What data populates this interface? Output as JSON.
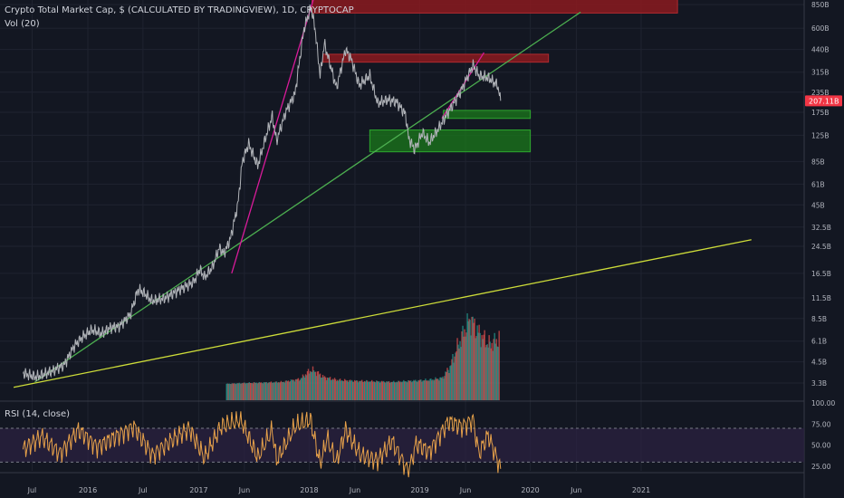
{
  "header": {
    "title": "Crypto Total Market Cap, $ (CALCULATED BY TRADINGVIEW), 1D, CRYPTOCAP",
    "volume_label": "Vol (20)",
    "rsi_label": "RSI (14, close)"
  },
  "colors": {
    "background": "#131722",
    "grid": "#1f2330",
    "price_line": "#b0b3b8",
    "green_trendline": "#4caf50",
    "yellow_trendline": "#cddc39",
    "magenta_trendline": "#d81b9a",
    "resistance_zone": "#8b1a1e",
    "support_zone": "#1b7a1b",
    "rsi_line": "#e8a24a",
    "rsi_band": "#2b2140",
    "current_price_tag": "#f23645"
  },
  "chart_data": {
    "type": "line",
    "title": "Crypto Total Market Cap, $ (CALCULATED BY TRADINGVIEW), 1D, CRYPTOCAP",
    "y_scale": "log",
    "y_ticks": [
      "850B",
      "600B",
      "440B",
      "315B",
      "235B",
      "175B",
      "125B",
      "85B",
      "61B",
      "45B",
      "32.5B",
      "24.5B",
      "16.5B",
      "11.5B",
      "8.5B",
      "6.1B",
      "4.5B",
      "3.3B"
    ],
    "x_ticks": [
      "Jul",
      "2016",
      "Jul",
      "2017",
      "Jun",
      "2018",
      "Jun",
      "2019",
      "Jun",
      "2020",
      "Jun",
      "2021"
    ],
    "current_price_label": "207.11B",
    "series": [
      {
        "kind": "price",
        "points": [
          [
            "2015-06-01",
            3.8
          ],
          [
            "2015-07-15",
            3.6
          ],
          [
            "2015-09-01",
            3.9
          ],
          [
            "2015-10-15",
            4.3
          ],
          [
            "2015-11-15",
            5.6
          ],
          [
            "2015-12-15",
            6.5
          ],
          [
            "2016-01-15",
            7.2
          ],
          [
            "2016-02-15",
            6.8
          ],
          [
            "2016-03-15",
            7.4
          ],
          [
            "2016-04-15",
            7.6
          ],
          [
            "2016-05-20",
            9.0
          ],
          [
            "2016-06-15",
            13.0
          ],
          [
            "2016-07-01",
            12.5
          ],
          [
            "2016-08-01",
            11.0
          ],
          [
            "2016-09-15",
            11.5
          ],
          [
            "2016-10-15",
            12.5
          ],
          [
            "2016-11-15",
            13.5
          ],
          [
            "2016-12-15",
            14.5
          ],
          [
            "2017-01-05",
            17.5
          ],
          [
            "2017-01-20",
            15.5
          ],
          [
            "2017-02-15",
            18.0
          ],
          [
            "2017-03-10",
            24.0
          ],
          [
            "2017-03-25",
            22.0
          ],
          [
            "2017-04-15",
            27.0
          ],
          [
            "2017-05-10",
            45.0
          ],
          [
            "2017-05-25",
            85.0
          ],
          [
            "2017-06-15",
            110.0
          ],
          [
            "2017-07-15",
            80.0
          ],
          [
            "2017-08-15",
            130.0
          ],
          [
            "2017-09-01",
            165.0
          ],
          [
            "2017-09-15",
            115.0
          ],
          [
            "2017-10-15",
            175.0
          ],
          [
            "2017-11-15",
            230.0
          ],
          [
            "2017-12-15",
            600.0
          ],
          [
            "2018-01-07",
            820.0
          ],
          [
            "2018-01-20",
            600.0
          ],
          [
            "2018-02-06",
            300.0
          ],
          [
            "2018-02-20",
            480.0
          ],
          [
            "2018-03-15",
            330.0
          ],
          [
            "2018-04-01",
            250.0
          ],
          [
            "2018-05-01",
            440.0
          ],
          [
            "2018-05-20",
            380.0
          ],
          [
            "2018-06-15",
            260.0
          ],
          [
            "2018-07-20",
            300.0
          ],
          [
            "2018-08-15",
            200.0
          ],
          [
            "2018-09-15",
            210.0
          ],
          [
            "2018-10-15",
            205.0
          ],
          [
            "2018-11-15",
            170.0
          ],
          [
            "2018-11-25",
            120.0
          ],
          [
            "2018-12-15",
            101.0
          ],
          [
            "2019-01-10",
            130.0
          ],
          [
            "2019-02-01",
            112.0
          ],
          [
            "2019-03-01",
            135.0
          ],
          [
            "2019-04-05",
            175.0
          ],
          [
            "2019-05-15",
            235.0
          ],
          [
            "2019-06-26",
            350.0
          ],
          [
            "2019-07-15",
            300.0
          ],
          [
            "2019-08-15",
            290.0
          ],
          [
            "2019-09-15",
            260.0
          ],
          [
            "2019-09-25",
            207.11
          ]
        ]
      },
      {
        "kind": "volume",
        "points": [
          [
            "2017-04-01",
            3.26
          ],
          [
            "2017-06-01",
            3.3
          ],
          [
            "2017-08-01",
            3.32
          ],
          [
            "2017-10-01",
            3.35
          ],
          [
            "2017-12-01",
            3.5
          ],
          [
            "2018-01-05",
            4.0
          ],
          [
            "2018-01-20",
            3.9
          ],
          [
            "2018-02-15",
            3.6
          ],
          [
            "2018-04-01",
            3.45
          ],
          [
            "2018-06-01",
            3.4
          ],
          [
            "2018-08-01",
            3.38
          ],
          [
            "2018-10-01",
            3.35
          ],
          [
            "2018-12-01",
            3.4
          ],
          [
            "2019-02-01",
            3.45
          ],
          [
            "2019-03-15",
            3.55
          ],
          [
            "2019-04-10",
            4.2
          ],
          [
            "2019-05-15",
            6.3
          ],
          [
            "2019-06-15",
            8.5
          ],
          [
            "2019-07-10",
            7.0
          ],
          [
            "2019-08-15",
            5.8
          ],
          [
            "2019-09-20",
            6.3
          ]
        ]
      },
      {
        "kind": "rsi",
        "y_ticks": [
          "100.00",
          "75.00",
          "50.00",
          "25.00"
        ],
        "points": [
          [
            "2015-06-01",
            45
          ],
          [
            "2015-08-01",
            60
          ],
          [
            "2015-10-01",
            40
          ],
          [
            "2015-12-01",
            68
          ],
          [
            "2016-02-01",
            48
          ],
          [
            "2016-04-01",
            60
          ],
          [
            "2016-06-01",
            72
          ],
          [
            "2016-08-01",
            38
          ],
          [
            "2016-10-01",
            55
          ],
          [
            "2016-12-01",
            70
          ],
          [
            "2017-01-20",
            35
          ],
          [
            "2017-03-15",
            72
          ],
          [
            "2017-05-20",
            80
          ],
          [
            "2017-07-15",
            35
          ],
          [
            "2017-09-01",
            68
          ],
          [
            "2017-09-15",
            32
          ],
          [
            "2017-11-15",
            72
          ],
          [
            "2018-01-05",
            80
          ],
          [
            "2018-02-06",
            28
          ],
          [
            "2018-03-01",
            58
          ],
          [
            "2018-04-01",
            30
          ],
          [
            "2018-05-01",
            68
          ],
          [
            "2018-06-20",
            38
          ],
          [
            "2018-08-15",
            32
          ],
          [
            "2018-10-01",
            55
          ],
          [
            "2018-11-25",
            18
          ],
          [
            "2018-12-20",
            52
          ],
          [
            "2019-02-01",
            42
          ],
          [
            "2019-04-05",
            78
          ],
          [
            "2019-05-20",
            72
          ],
          [
            "2019-06-26",
            80
          ],
          [
            "2019-07-15",
            40
          ],
          [
            "2019-08-15",
            62
          ],
          [
            "2019-09-25",
            22
          ]
        ]
      }
    ],
    "annotations": [
      {
        "kind": "resistance_zone",
        "from": "2018-01-10",
        "to": "2021-05-01",
        "y_low": 750,
        "y_high": 1000
      },
      {
        "kind": "resistance_zone",
        "from": "2018-02-15",
        "to": "2020-03-01",
        "y_low": 365,
        "y_high": 410
      },
      {
        "kind": "support_zone",
        "from": "2019-03-20",
        "to": "2020-01-01",
        "y_low": 160,
        "y_high": 180
      },
      {
        "kind": "support_zone",
        "from": "2018-07-20",
        "to": "2020-01-01",
        "y_low": 98,
        "y_high": 135
      },
      {
        "kind": "green_trendline",
        "from_date": "2015-07-10",
        "from_value": 3.35,
        "to_date": "2020-06-15",
        "to_value": 760
      },
      {
        "kind": "yellow_trendline",
        "from_date": "2015-05-01",
        "from_value": 3.1,
        "to_date": "2021-12-31",
        "to_value": 27.0
      },
      {
        "kind": "magenta_trendline",
        "from_date": "2017-04-20",
        "from_value": 16.5,
        "to_date": "2018-01-27",
        "to_value": 1100
      },
      {
        "kind": "magenta_trendline",
        "from_date": "2019-03-15",
        "from_value": 160,
        "to_date": "2019-08-01",
        "to_value": 420
      }
    ]
  }
}
